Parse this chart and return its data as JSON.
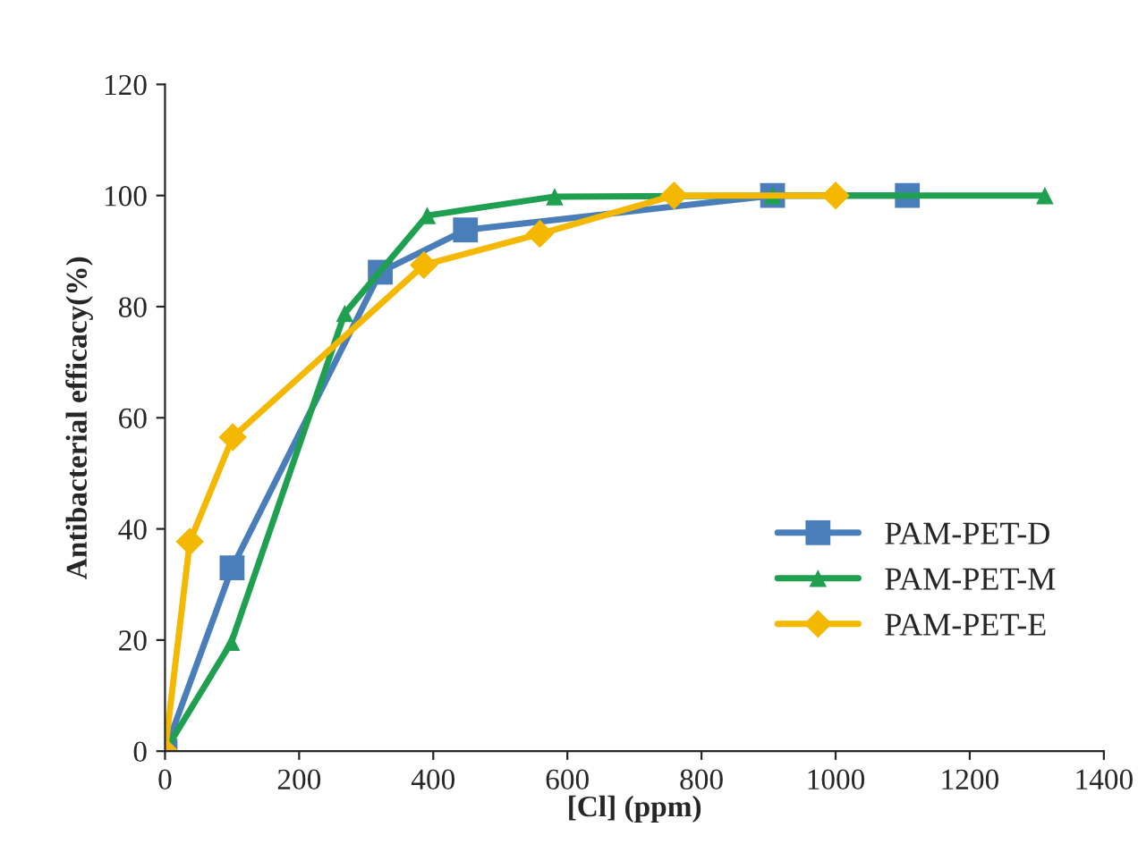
{
  "chart_data": {
    "type": "line",
    "xlabel": "[Cl] (ppm)",
    "ylabel": "Antibacterial efficacy(%)",
    "xlim": [
      0,
      1400
    ],
    "xticks": [
      0,
      200,
      400,
      600,
      800,
      1000,
      1200,
      1400
    ],
    "ylim": [
      0,
      120
    ],
    "yticks": [
      0,
      20,
      40,
      60,
      80,
      100,
      120
    ],
    "grid": false,
    "legend": "lower right",
    "line_style": "solid",
    "series": [
      {
        "name": "PAM-PET-D",
        "color": "#4a7ebb",
        "marker": "square",
        "x": [
          0,
          100,
          321,
          448,
          906,
          1107
        ],
        "values": [
          0,
          33,
          86.2,
          93.8,
          100,
          100
        ]
      },
      {
        "name": "PAM-PET-M",
        "color": "#1fa050",
        "marker": "triangle",
        "x": [
          0,
          99,
          268,
          391,
          581,
          906,
          1312
        ],
        "values": [
          0,
          19.6,
          78.8,
          96.4,
          99.8,
          100,
          100
        ]
      },
      {
        "name": "PAM-PET-E",
        "color": "#f5b800",
        "marker": "diamond",
        "x": [
          0,
          37,
          101,
          386,
          559,
          759,
          1000
        ],
        "values": [
          0,
          37.7,
          56.5,
          87.5,
          93.1,
          100,
          100
        ]
      }
    ]
  }
}
